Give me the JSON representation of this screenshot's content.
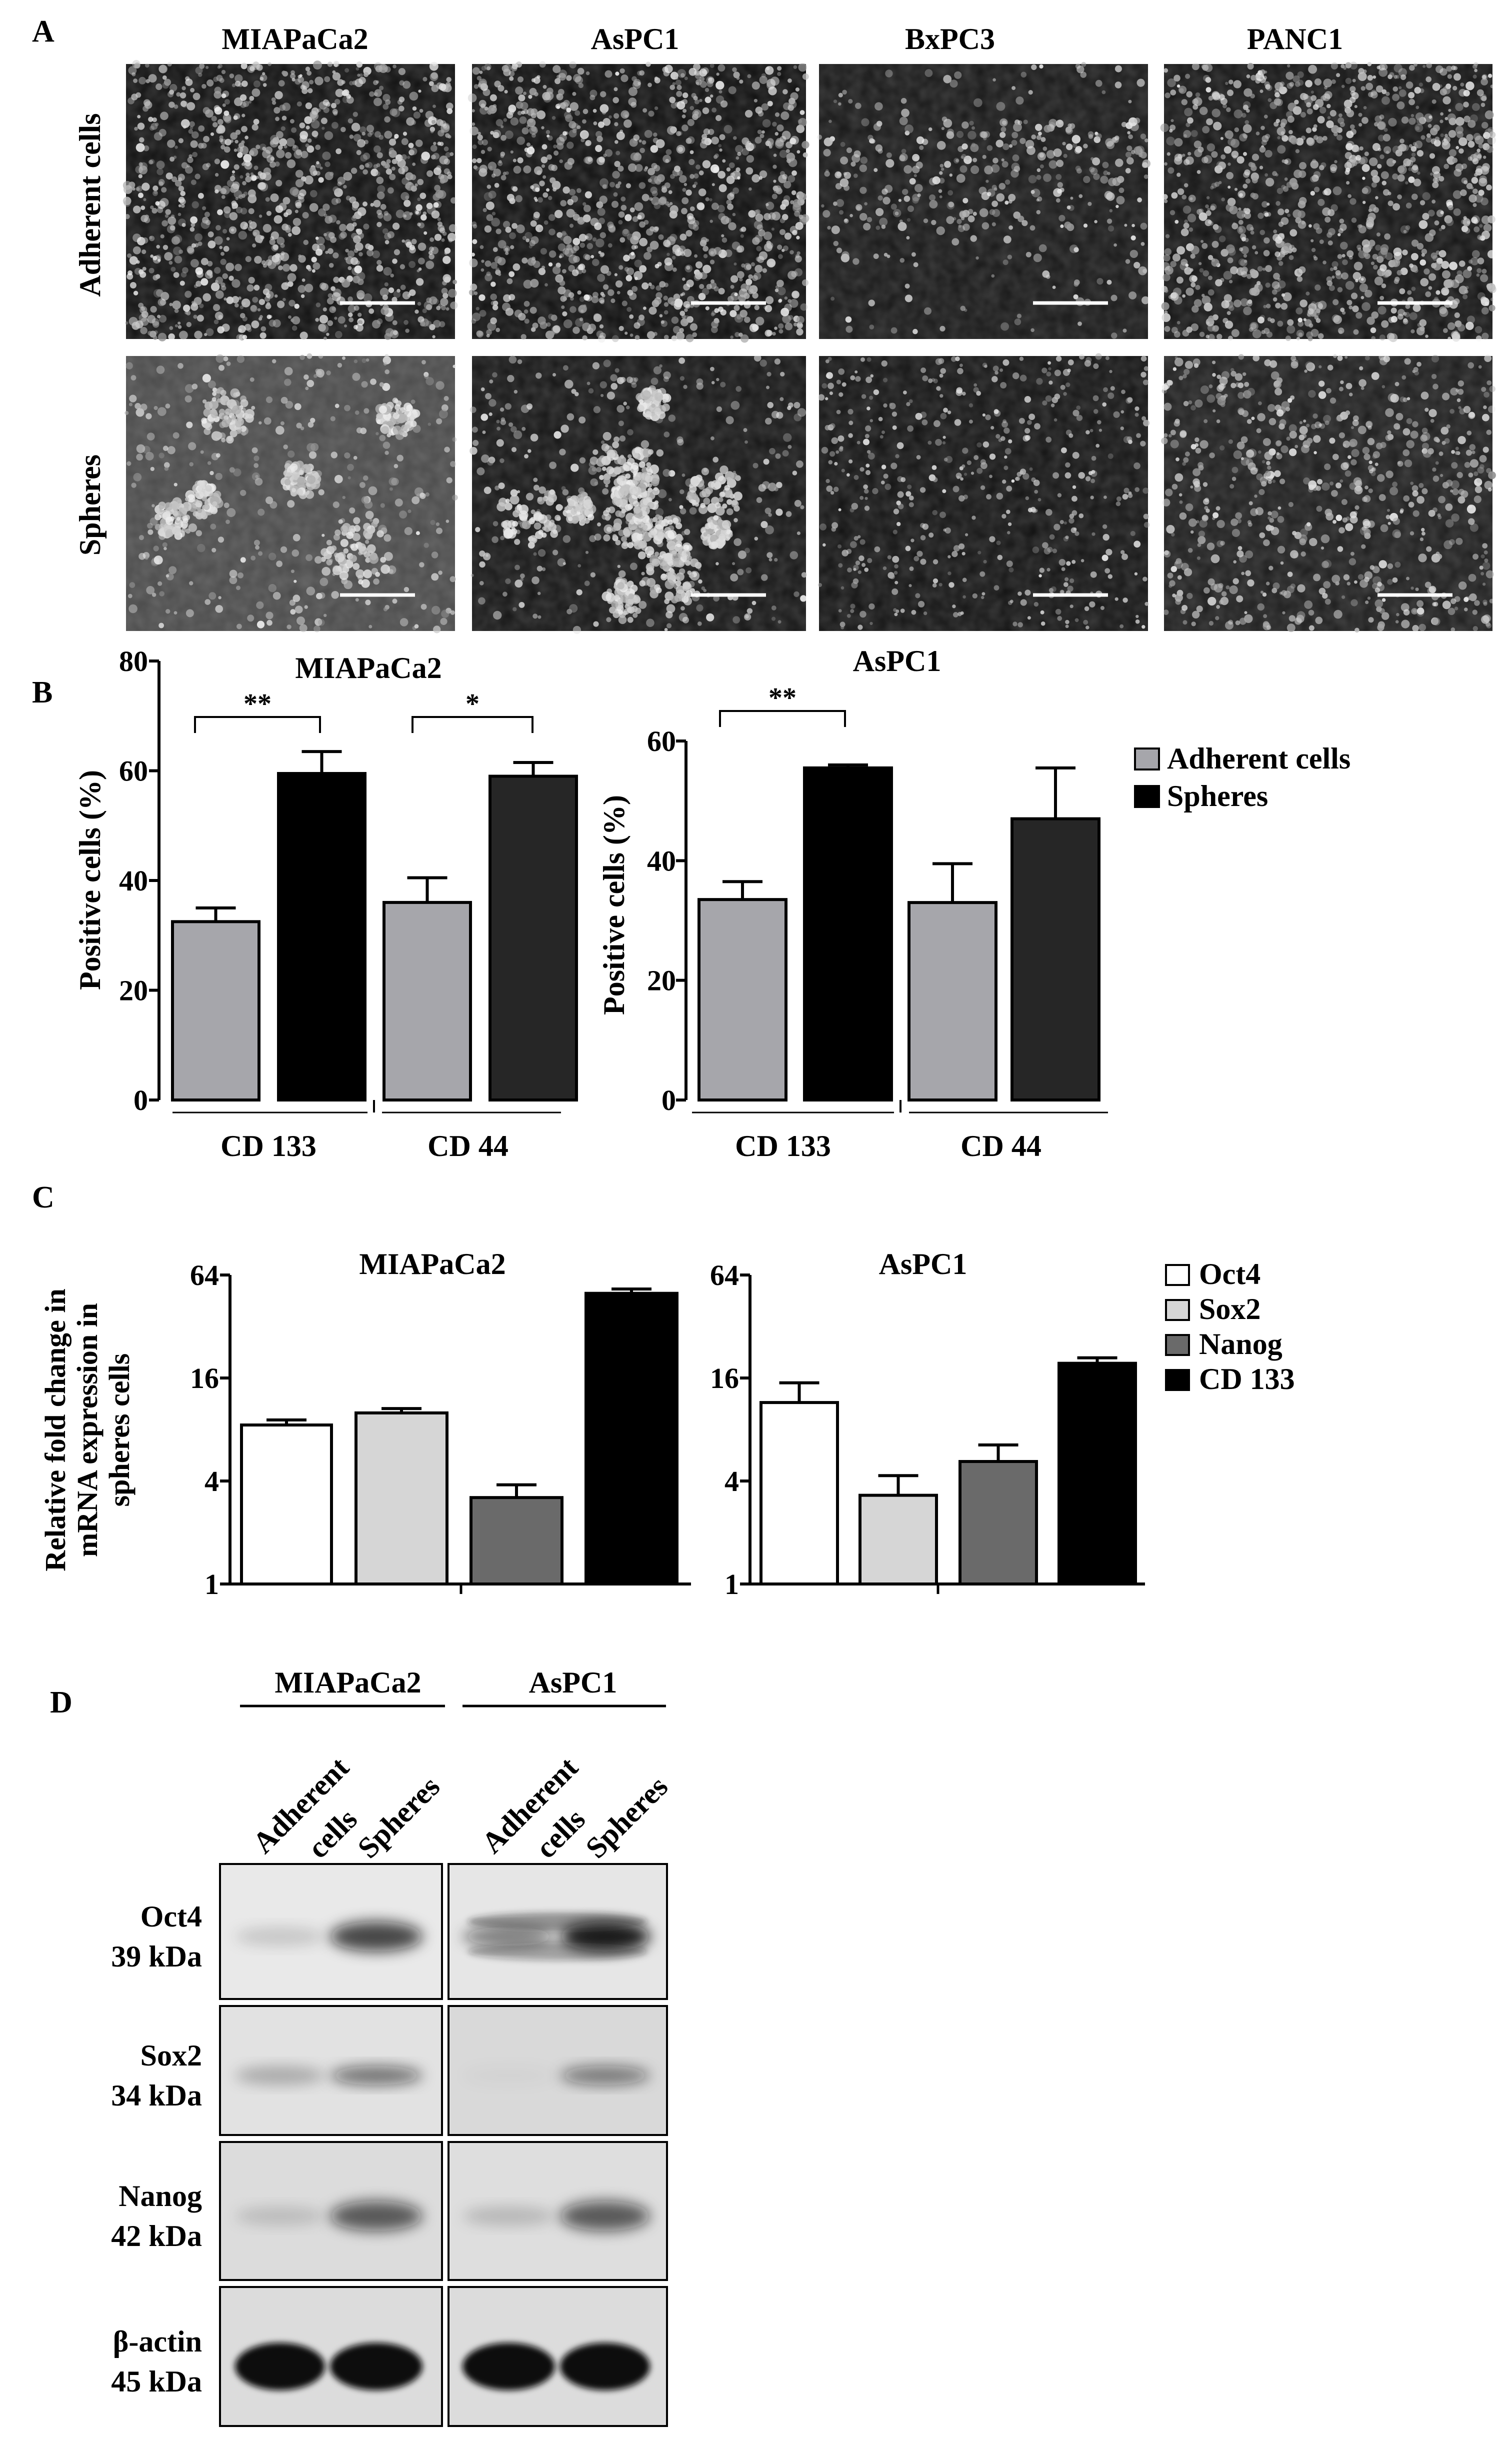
{
  "panels": {
    "a": "A",
    "b": "B",
    "c": "C",
    "d": "D"
  },
  "panel_a": {
    "columns": [
      "MIAPaCa2",
      "AsPC1",
      "BxPC3",
      "PANC1"
    ],
    "rows": [
      "Adherent cells",
      "Spheres"
    ]
  },
  "chart_data": [
    {
      "type": "bar",
      "title": "MIAPaCa2",
      "ylabel": "Positive cells (%)",
      "ylim": [
        0,
        80
      ],
      "yticks": [
        0,
        20,
        40,
        60,
        80
      ],
      "groups": [
        "CD 133",
        "CD 44"
      ],
      "series": [
        {
          "name": "Adherent cells",
          "values": [
            32.5,
            36
          ],
          "errors": [
            2.5,
            4.5
          ]
        },
        {
          "name": "Spheres",
          "values": [
            59.5,
            59
          ],
          "errors": [
            4,
            2.5
          ]
        }
      ],
      "significance": [
        "**",
        "*"
      ],
      "colors": {
        "Adherent cells": "#a6a6ab",
        "Spheres CD 133": "#000000",
        "Spheres CD 44": "#262626"
      }
    },
    {
      "type": "bar",
      "title": "AsPC1",
      "ylabel": "Positive cells (%)",
      "ylim": [
        0,
        60
      ],
      "yticks": [
        0,
        20,
        40,
        60
      ],
      "groups": [
        "CD 133",
        "CD 44"
      ],
      "series": [
        {
          "name": "Adherent cells",
          "values": [
            33.5,
            33
          ],
          "errors": [
            3,
            6.5
          ]
        },
        {
          "name": "Spheres",
          "values": [
            55.5,
            47
          ],
          "errors": [
            0.5,
            8.5
          ]
        }
      ],
      "significance": [
        "**"
      ],
      "legend": [
        "Adherent cells",
        "Spheres"
      ],
      "legend_position": "right"
    },
    {
      "type": "bar",
      "title": "MIAPaCa2",
      "ylabel": "Relative fold change in mRNA expression in spheres cells",
      "yscale": "log2",
      "ylim": [
        1,
        64
      ],
      "yticks": [
        1,
        4,
        16,
        64
      ],
      "categories": [
        "Oct4",
        "Sox2",
        "Nanog",
        "CD 133"
      ],
      "values": [
        8.5,
        10,
        3.2,
        50
      ],
      "errors": [
        0.6,
        0.6,
        0.6,
        3
      ]
    },
    {
      "type": "bar",
      "title": "AsPC1",
      "yscale": "log2",
      "ylim": [
        1,
        64
      ],
      "yticks": [
        1,
        4,
        16,
        64
      ],
      "categories": [
        "Oct4",
        "Sox2",
        "Nanog",
        "CD 133"
      ],
      "values": [
        11.5,
        3.3,
        5.2,
        19.5
      ],
      "errors": [
        3.5,
        1,
        1.3,
        1.5
      ],
      "legend": [
        "Oct4",
        "Sox2",
        "Nanog",
        "CD 133"
      ],
      "legend_position": "right",
      "colors": {
        "Oct4": "#ffffff",
        "Sox2": "#d6d6d6",
        "Nanog": "#6a6a6a",
        "CD 133": "#000000"
      }
    }
  ],
  "panel_d": {
    "cell_lines": [
      "MIAPaCa2",
      "AsPC1"
    ],
    "lanes": {
      "adherent_line1": "Adherent",
      "adherent_line2": "cells",
      "spheres": "Spheres"
    },
    "blots": [
      {
        "name": "Oct4",
        "weight": "39 kDa"
      },
      {
        "name": "Sox2",
        "weight": "34 kDa"
      },
      {
        "name": "Nanog",
        "weight": "42 kDa"
      },
      {
        "name": "β-actin",
        "weight": "45 kDa"
      }
    ]
  }
}
